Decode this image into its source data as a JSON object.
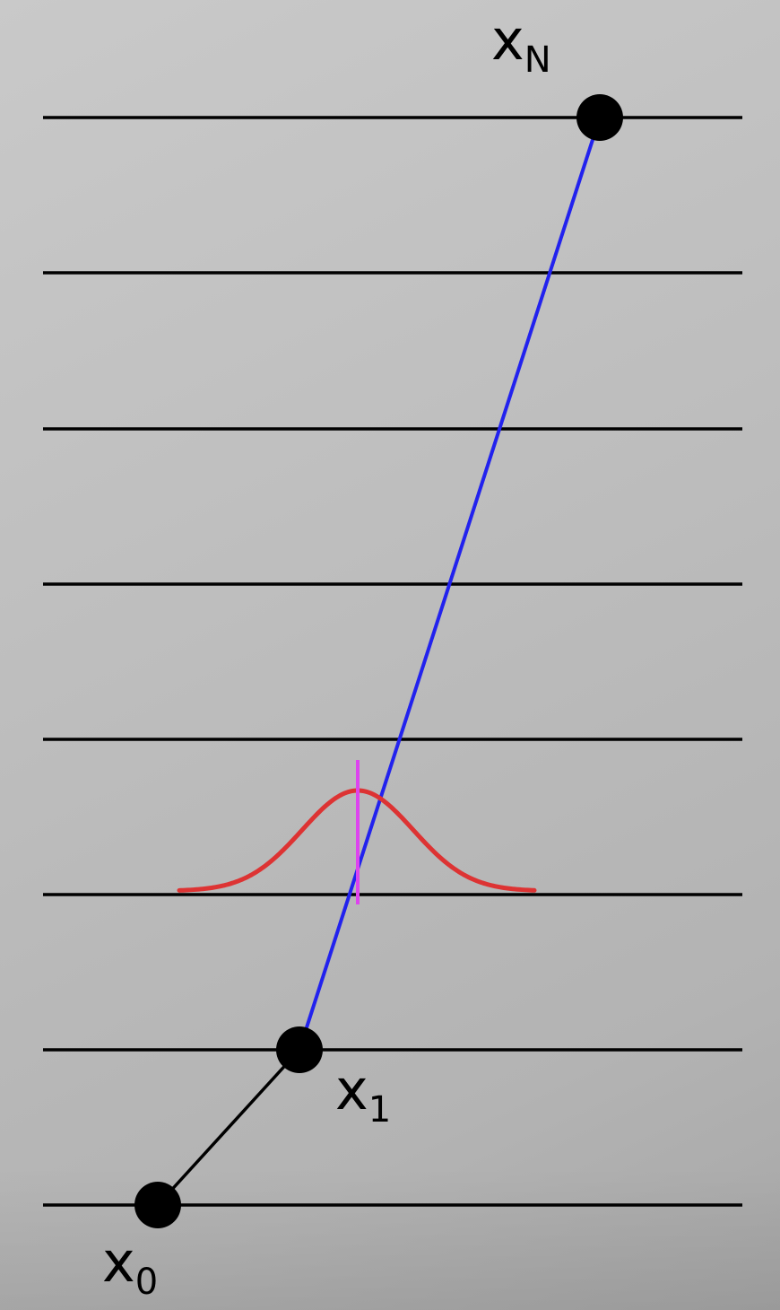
{
  "labels": {
    "x_n": {
      "base": "x",
      "sub": "N"
    },
    "x_1": {
      "base": "x",
      "sub": "1"
    },
    "x_0": {
      "base": "x",
      "sub": "0"
    }
  },
  "colors": {
    "level_lines": "#000000",
    "trajectory_line": "#2222ee",
    "step_line": "#000000",
    "gaussian_curve": "#dd3333",
    "mean_marker": "#dd44ee",
    "points": "#000000"
  }
}
